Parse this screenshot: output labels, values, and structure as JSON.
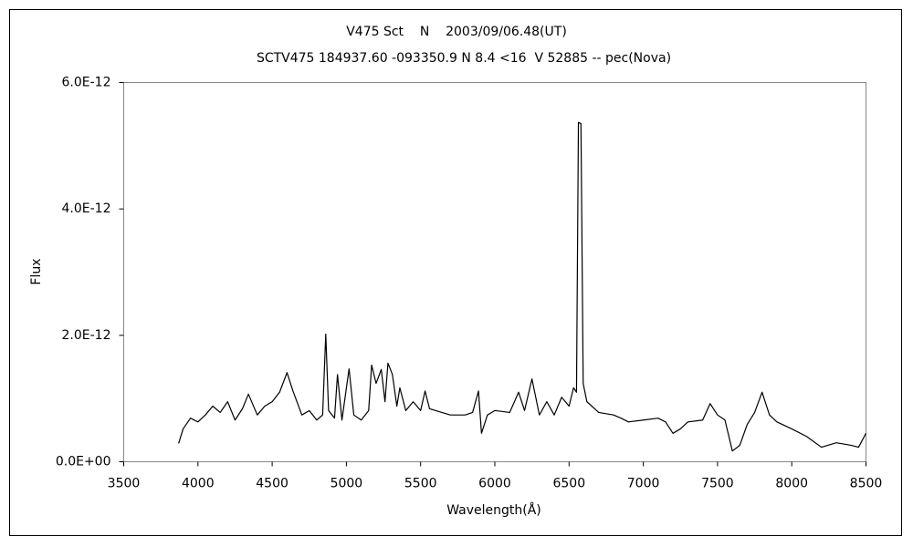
{
  "chart_data": {
    "type": "line",
    "title": "V475 Sct    N    2003/09/06.48(UT)",
    "subtitle": "SCTV475 184937.60 -093350.9 N 8.4 <16  V 52885 -- pec(Nova)",
    "x_label": "Wavelength(Å)",
    "y_label": "Flux",
    "xlim": [
      3500,
      8500
    ],
    "xticks": [
      3500,
      4000,
      4500,
      5000,
      5500,
      6000,
      6500,
      7000,
      7500,
      8000,
      8500
    ],
    "ylim": [
      0,
      6e-12
    ],
    "yticks": [
      {
        "value": 0,
        "label": "0.0E+00"
      },
      {
        "value": 2e-12,
        "label": "2.0E-12"
      },
      {
        "value": 4e-12,
        "label": "4.0E-12"
      },
      {
        "value": 6e-12,
        "label": "6.0E-12"
      }
    ],
    "color": "#000000",
    "x": [
      3870,
      3900,
      3950,
      4000,
      4050,
      4100,
      4150,
      4200,
      4250,
      4300,
      4340,
      4400,
      4450,
      4500,
      4550,
      4600,
      4640,
      4700,
      4750,
      4800,
      4840,
      4861,
      4880,
      4920,
      4940,
      4970,
      5018,
      5050,
      5100,
      5150,
      5170,
      5200,
      5235,
      5260,
      5280,
      5310,
      5340,
      5360,
      5400,
      5450,
      5500,
      5530,
      5560,
      5600,
      5700,
      5800,
      5850,
      5890,
      5910,
      5950,
      6000,
      6100,
      6160,
      6200,
      6250,
      6300,
      6350,
      6400,
      6450,
      6500,
      6530,
      6550,
      6563,
      6580,
      6595,
      6620,
      6700,
      6800,
      6850,
      6900,
      7000,
      7100,
      7150,
      7200,
      7250,
      7300,
      7400,
      7450,
      7500,
      7550,
      7600,
      7650,
      7700,
      7750,
      7800,
      7850,
      7900,
      8000,
      8100,
      8200,
      8300,
      8400,
      8450,
      8500
    ],
    "values": [
      2.9e-13,
      5.2e-13,
      6.9e-13,
      6.3e-13,
      7.4e-13,
      8.8e-13,
      7.8e-13,
      9.5e-13,
      6.6e-13,
      8.4e-13,
      1.07e-12,
      7.4e-13,
      8.8e-13,
      9.5e-13,
      1.1e-12,
      1.41e-12,
      1.12e-12,
      7.4e-13,
      8.1e-13,
      6.6e-13,
      7.4e-13,
      2.02e-12,
      8.1e-13,
      6.9e-13,
      1.38e-12,
      6.6e-13,
      1.47e-12,
      7.4e-13,
      6.6e-13,
      8.1e-13,
      1.53e-12,
      1.24e-12,
      1.46e-12,
      9.5e-13,
      1.56e-12,
      1.38e-12,
      8.8e-13,
      1.17e-12,
      8.1e-13,
      9.5e-13,
      8.1e-13,
      1.12e-12,
      8.4e-13,
      8.1e-13,
      7.4e-13,
      7.4e-13,
      7.8e-13,
      1.12e-12,
      4.5e-13,
      7.4e-13,
      8.1e-13,
      7.8e-13,
      1.1e-12,
      8.1e-13,
      1.31e-12,
      7.4e-13,
      9.5e-13,
      7.4e-13,
      1.02e-12,
      8.8e-13,
      1.17e-12,
      1.1e-12,
      5.37e-12,
      5.35e-12,
      1.24e-12,
      9.5e-13,
      7.8e-13,
      7.4e-13,
      6.9e-13,
      6.3e-13,
      6.6e-13,
      6.9e-13,
      6.3e-13,
      4.5e-13,
      5.2e-13,
      6.3e-13,
      6.6e-13,
      9.2e-13,
      7.4e-13,
      6.6e-13,
      1.7e-13,
      2.6e-13,
      5.9e-13,
      7.8e-13,
      1.1e-12,
      7.4e-13,
      6.3e-13,
      5.2e-13,
      4e-13,
      2.3e-13,
      3e-13,
      2.6e-13,
      2.3e-13,
      4.5e-13
    ]
  }
}
